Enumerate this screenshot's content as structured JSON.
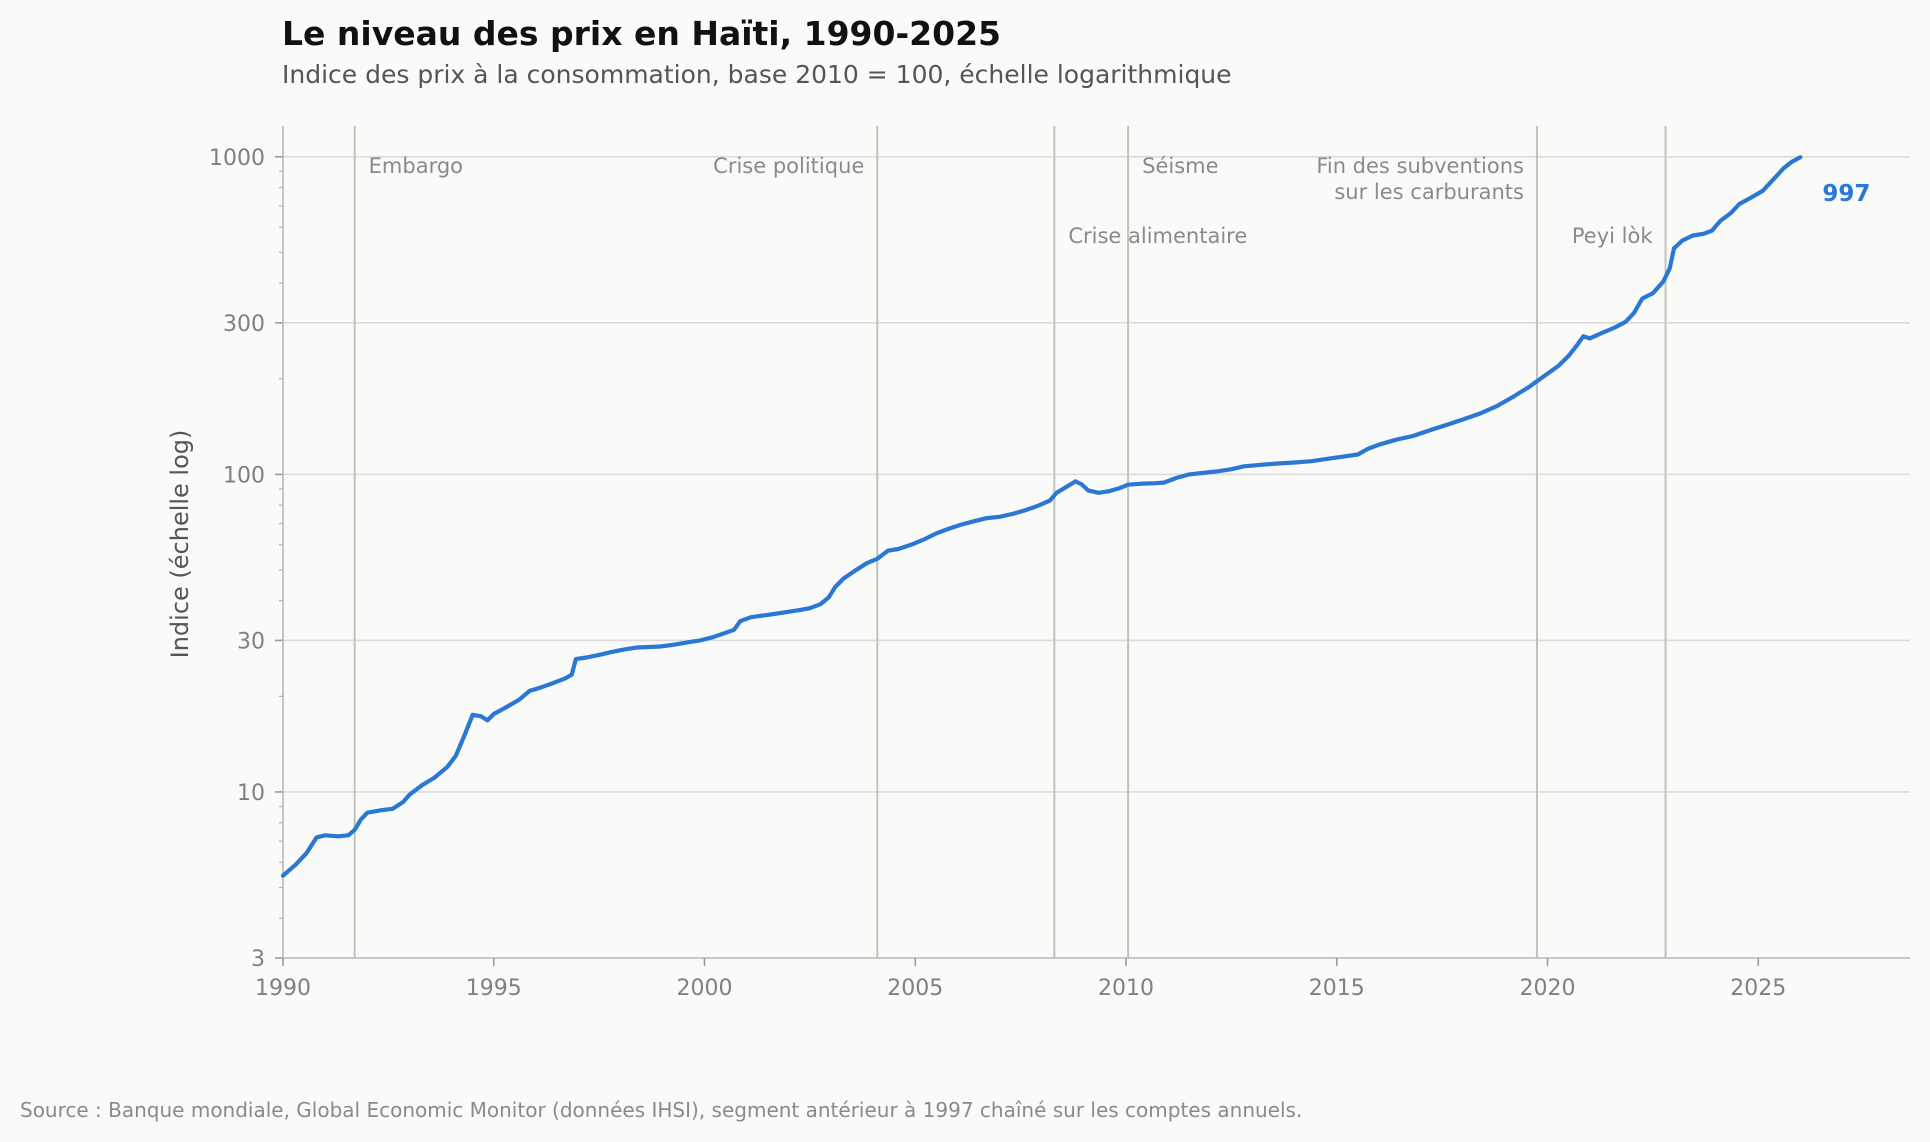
{
  "header": {
    "title": "Le niveau des prix en Haïti, 1990-2025",
    "subtitle": "Indice des prix à la consommation, base 2010 = 100, échelle logarithmique"
  },
  "footer": {
    "source": "Source : Banque mondiale, Global Economic Monitor (données IHSI), segment antérieur à 1997 chaîné sur les comptes annuels."
  },
  "colors": {
    "line": "#2b78d4",
    "grid": "#dcdcdc",
    "event_line": "#c2c2bc"
  },
  "chart_data": {
    "type": "line",
    "title": "Le niveau des prix en Haïti, 1990-2025",
    "subtitle": "Indice des prix à la consommation, base 2010 = 100, échelle logarithmique",
    "xlabel": "",
    "ylabel": "Indice (échelle log)",
    "yscale": "log",
    "xlim": [
      1990,
      2028.6
    ],
    "ylim": [
      3,
      1250
    ],
    "x_ticks": [
      1990,
      1995,
      2000,
      2005,
      2010,
      2015,
      2020,
      2025
    ],
    "y_ticks": [
      3,
      10,
      30,
      100,
      300,
      1000
    ],
    "grid": "horizontal",
    "end_label": "997",
    "events": [
      {
        "x": 1991.7,
        "label": [
          "Embargo"
        ],
        "align": "left",
        "row": 0
      },
      {
        "x": 2004.1,
        "label": [
          "Crise politique"
        ],
        "align": "right",
        "row": 0
      },
      {
        "x": 2008.3,
        "label": [
          "Crise alimentaire"
        ],
        "align": "left",
        "row": 2
      },
      {
        "x": 2010.05,
        "label": [
          "Séisme"
        ],
        "align": "left",
        "row": 0
      },
      {
        "x": 2019.75,
        "label": [
          "Fin des subventions",
          "sur les carburants"
        ],
        "align": "right",
        "row": 0
      },
      {
        "x": 2022.8,
        "label": [
          "Peyi lòk"
        ],
        "align": "right",
        "row": 2
      }
    ],
    "series": [
      {
        "points": [
          [
            1990.0,
            5.45
          ],
          [
            1990.3,
            5.9
          ],
          [
            1990.55,
            6.4
          ],
          [
            1990.8,
            7.2
          ],
          [
            1991.0,
            7.3
          ],
          [
            1991.3,
            7.25
          ],
          [
            1991.55,
            7.3
          ],
          [
            1991.7,
            7.6
          ],
          [
            1991.85,
            8.2
          ],
          [
            1992.0,
            8.6
          ],
          [
            1992.3,
            8.75
          ],
          [
            1992.6,
            8.85
          ],
          [
            1992.85,
            9.3
          ],
          [
            1993.0,
            9.8
          ],
          [
            1993.3,
            10.5
          ],
          [
            1993.6,
            11.1
          ],
          [
            1993.9,
            12.0
          ],
          [
            1994.1,
            13.0
          ],
          [
            1994.3,
            15.0
          ],
          [
            1994.5,
            17.5
          ],
          [
            1994.7,
            17.3
          ],
          [
            1994.85,
            16.8
          ],
          [
            1995.0,
            17.6
          ],
          [
            1995.3,
            18.5
          ],
          [
            1995.6,
            19.5
          ],
          [
            1995.85,
            20.8
          ],
          [
            1996.1,
            21.3
          ],
          [
            1996.4,
            22.0
          ],
          [
            1996.7,
            22.8
          ],
          [
            1996.85,
            23.4
          ],
          [
            1996.95,
            26.2
          ],
          [
            1997.2,
            26.5
          ],
          [
            1997.5,
            27.0
          ],
          [
            1997.8,
            27.6
          ],
          [
            1998.1,
            28.1
          ],
          [
            1998.4,
            28.5
          ],
          [
            1998.7,
            28.6
          ],
          [
            1998.95,
            28.7
          ],
          [
            1999.3,
            29.1
          ],
          [
            1999.6,
            29.6
          ],
          [
            1999.9,
            30.0
          ],
          [
            2000.2,
            30.7
          ],
          [
            2000.5,
            31.7
          ],
          [
            2000.7,
            32.4
          ],
          [
            2000.85,
            34.5
          ],
          [
            2001.1,
            35.5
          ],
          [
            2001.5,
            36.1
          ],
          [
            2001.8,
            36.6
          ],
          [
            2002.2,
            37.3
          ],
          [
            2002.5,
            37.9
          ],
          [
            2002.75,
            39.0
          ],
          [
            2002.95,
            41.0
          ],
          [
            2003.1,
            44.2
          ],
          [
            2003.3,
            47.0
          ],
          [
            2003.55,
            49.5
          ],
          [
            2003.85,
            52.5
          ],
          [
            2004.1,
            54.2
          ],
          [
            2004.35,
            57.5
          ],
          [
            2004.6,
            58.2
          ],
          [
            2004.9,
            60.0
          ],
          [
            2005.2,
            62.3
          ],
          [
            2005.5,
            65.2
          ],
          [
            2005.8,
            67.5
          ],
          [
            2006.1,
            69.5
          ],
          [
            2006.4,
            71.2
          ],
          [
            2006.7,
            72.8
          ],
          [
            2007.0,
            73.5
          ],
          [
            2007.3,
            75.0
          ],
          [
            2007.6,
            77.0
          ],
          [
            2007.9,
            79.5
          ],
          [
            2008.2,
            82.8
          ],
          [
            2008.35,
            87.5
          ],
          [
            2008.6,
            91.5
          ],
          [
            2008.8,
            95.0
          ],
          [
            2008.95,
            93.0
          ],
          [
            2009.1,
            89.0
          ],
          [
            2009.35,
            87.5
          ],
          [
            2009.6,
            88.5
          ],
          [
            2009.85,
            90.5
          ],
          [
            2010.05,
            92.8
          ],
          [
            2010.4,
            93.5
          ],
          [
            2010.7,
            93.8
          ],
          [
            2010.9,
            94.2
          ],
          [
            2011.2,
            97.5
          ],
          [
            2011.5,
            100.0
          ],
          [
            2011.8,
            101.0
          ],
          [
            2012.2,
            102.3
          ],
          [
            2012.5,
            103.8
          ],
          [
            2012.8,
            106.0
          ],
          [
            2013.2,
            107.2
          ],
          [
            2013.6,
            108.2
          ],
          [
            2014.0,
            109.0
          ],
          [
            2014.4,
            110.0
          ],
          [
            2014.8,
            112.0
          ],
          [
            2015.2,
            114.0
          ],
          [
            2015.5,
            115.5
          ],
          [
            2015.75,
            120.5
          ],
          [
            2016.0,
            124.0
          ],
          [
            2016.4,
            128.5
          ],
          [
            2016.8,
            132.0
          ],
          [
            2017.2,
            137.5
          ],
          [
            2017.6,
            143.0
          ],
          [
            2018.0,
            149.0
          ],
          [
            2018.4,
            155.5
          ],
          [
            2018.8,
            164.0
          ],
          [
            2019.2,
            176.0
          ],
          [
            2019.55,
            188.0
          ],
          [
            2019.9,
            203.0
          ],
          [
            2020.25,
            219.0
          ],
          [
            2020.5,
            236.0
          ],
          [
            2020.7,
            255.0
          ],
          [
            2020.85,
            272.0
          ],
          [
            2021.0,
            268.0
          ],
          [
            2021.3,
            279.0
          ],
          [
            2021.6,
            290.0
          ],
          [
            2021.85,
            302.0
          ],
          [
            2022.05,
            322.0
          ],
          [
            2022.25,
            358.0
          ],
          [
            2022.5,
            372.0
          ],
          [
            2022.75,
            405.0
          ],
          [
            2022.9,
            445.0
          ],
          [
            2023.0,
            515.0
          ],
          [
            2023.2,
            545.0
          ],
          [
            2023.45,
            565.0
          ],
          [
            2023.7,
            572.0
          ],
          [
            2023.9,
            585.0
          ],
          [
            2024.1,
            628.0
          ],
          [
            2024.35,
            665.0
          ],
          [
            2024.55,
            710.0
          ],
          [
            2024.8,
            740.0
          ],
          [
            2025.1,
            780.0
          ],
          [
            2025.4,
            860.0
          ],
          [
            2025.6,
            920.0
          ],
          [
            2025.8,
            965.0
          ],
          [
            2026.0,
            997.0
          ]
        ]
      }
    ]
  }
}
